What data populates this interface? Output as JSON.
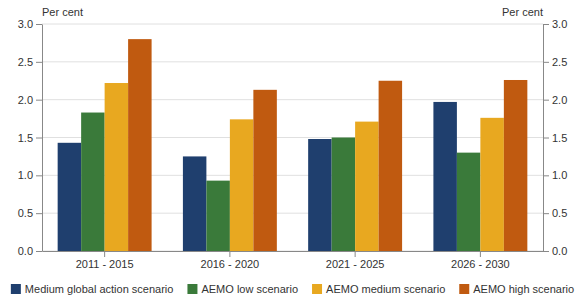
{
  "chart_data": {
    "type": "bar",
    "categories": [
      "2011 - 2015",
      "2016 - 2020",
      "2021 - 2025",
      "2026 - 2030"
    ],
    "series": [
      {
        "name": "Medium global action scenario",
        "color": "#1f3f6e",
        "values": [
          1.43,
          1.25,
          1.48,
          1.97
        ]
      },
      {
        "name": "AEMO low scenario",
        "color": "#3a7a3a",
        "values": [
          1.83,
          0.93,
          1.5,
          1.3
        ]
      },
      {
        "name": "AEMO medium scenario",
        "color": "#e8a820",
        "values": [
          2.22,
          1.74,
          1.71,
          1.76
        ]
      },
      {
        "name": "AEMO high scenario",
        "color": "#c05a10",
        "values": [
          2.8,
          2.13,
          2.25,
          2.26
        ]
      }
    ],
    "ylabel": "Per cent",
    "y2label": "Per cent",
    "ylim": [
      0.0,
      3.0
    ],
    "yticks": [
      {
        "value": 0.0,
        "label": "0.0"
      },
      0.5,
      {
        "value": 1.0,
        "label": "1.0"
      },
      1.5,
      {
        "value": 2.0,
        "label": "2.0"
      },
      2.5,
      {
        "value": 3.0,
        "label": "3.0"
      }
    ],
    "y2lim": [
      0.0,
      3.0
    ],
    "y2ticks": [
      {
        "value": 0.0,
        "label": "0.0"
      },
      0.5,
      {
        "value": 1.0,
        "label": "1.0"
      },
      1.5,
      {
        "value": 2.0,
        "label": "2.0"
      },
      2.5,
      {
        "value": 3.0,
        "label": "3.0"
      }
    ],
    "grid": true,
    "legend": "bottom"
  }
}
